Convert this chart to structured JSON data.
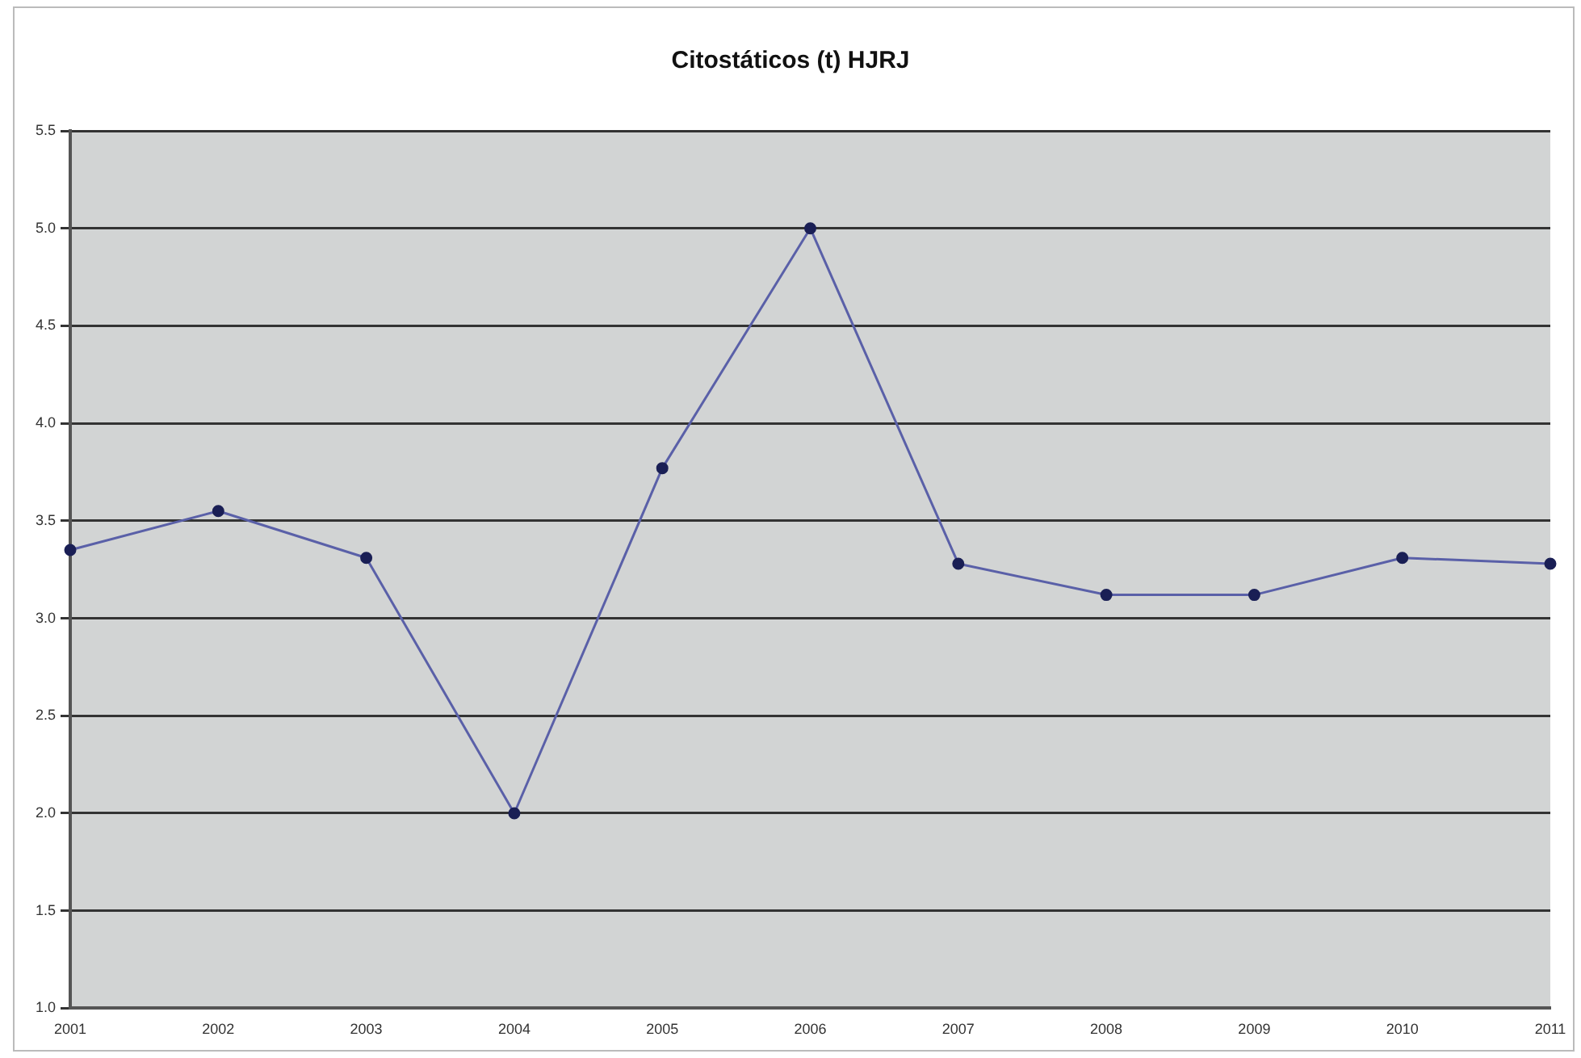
{
  "chart_data": {
    "type": "line",
    "title": "Citostáticos (t) HJRJ",
    "categories": [
      "2001",
      "2002",
      "2003",
      "2004",
      "2005",
      "2006",
      "2007",
      "2008",
      "2009",
      "2010",
      "2011"
    ],
    "series": [
      {
        "color": "#5a60a8",
        "values": [
          3.35,
          3.55,
          3.31,
          2.0,
          3.77,
          5.0,
          3.28,
          3.12,
          3.12,
          3.31,
          3.28
        ]
      }
    ],
    "ylim": [
      1.0,
      5.5
    ],
    "yticks": [
      {
        "value": 1.0,
        "label": "1.0"
      },
      {
        "value": 1.5,
        "label": "1.5"
      },
      {
        "value": 2.0,
        "label": "2.0"
      },
      {
        "value": 2.5,
        "label": "2.5"
      },
      {
        "value": 3.0,
        "label": "3.0"
      },
      {
        "value": 3.5,
        "label": "3.5"
      },
      {
        "value": 4.0,
        "label": "4.0"
      },
      {
        "value": 4.5,
        "label": "4.5"
      },
      {
        "value": 5.0,
        "label": "5.0"
      },
      {
        "value": 5.5,
        "label": "5.5"
      }
    ],
    "grid": "y",
    "legend": false,
    "marker": "circle",
    "line_style": "solid"
  }
}
